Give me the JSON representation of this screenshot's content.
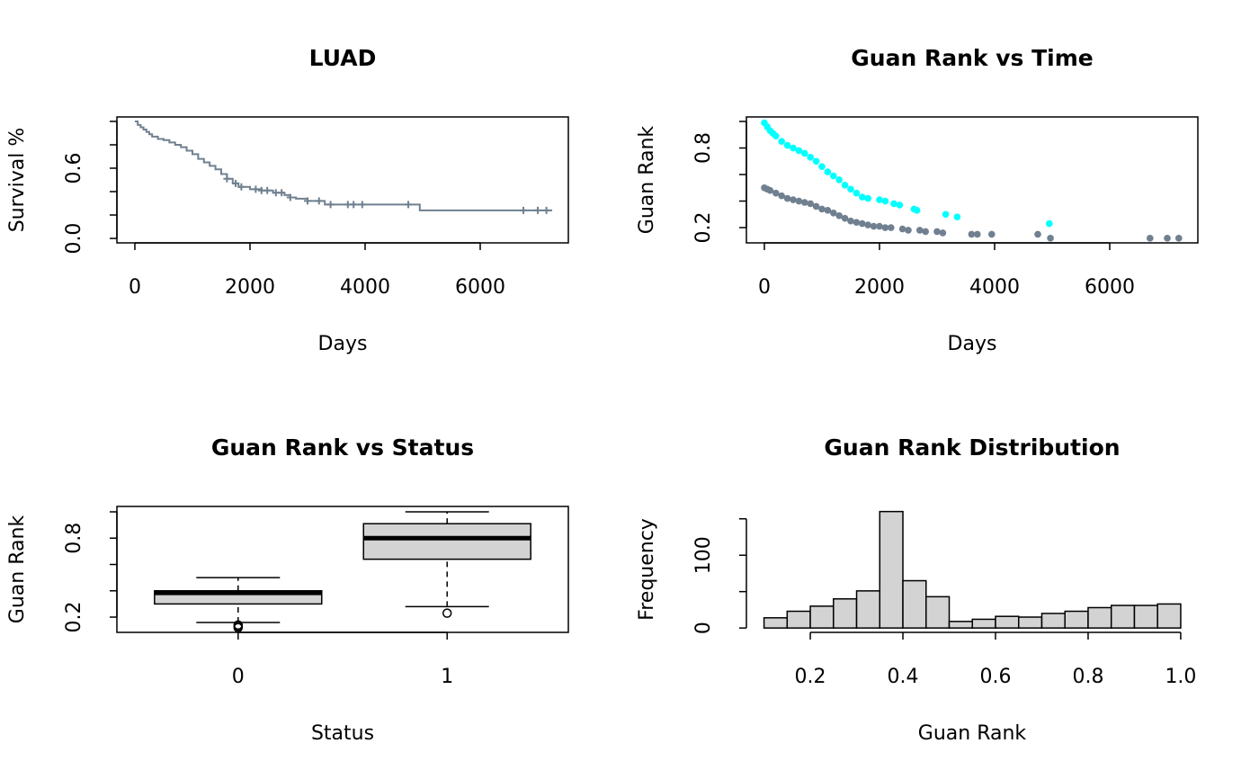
{
  "chart_data": [
    {
      "type": "step",
      "title": "LUAD",
      "xlabel": "Days",
      "ylabel": "Survival %",
      "frame": true,
      "color": "#708090",
      "xlim": [
        -312,
        7531
      ],
      "ylim": [
        -0.038,
        1.038
      ],
      "xticks": [
        0,
        2000,
        4000,
        6000
      ],
      "yticks": [
        {
          "value": 0,
          "label": "0.0"
        },
        {
          "value": 0.2,
          "label": null
        },
        {
          "value": 0.4,
          "label": null
        },
        {
          "value": 0.6,
          "label": "0.6"
        },
        {
          "value": 0.8,
          "label": null
        },
        {
          "value": 1.0,
          "label": null
        }
      ],
      "x": [
        0,
        50,
        100,
        150,
        200,
        250,
        300,
        400,
        500,
        600,
        700,
        800,
        900,
        1000,
        1100,
        1200,
        1300,
        1400,
        1500,
        1600,
        1700,
        1800,
        2000,
        2200,
        2400,
        2600,
        2700,
        2800,
        3000,
        3300,
        4950,
        7250
      ],
      "values": [
        1.0,
        0.97,
        0.95,
        0.93,
        0.91,
        0.89,
        0.87,
        0.85,
        0.84,
        0.82,
        0.8,
        0.78,
        0.75,
        0.72,
        0.68,
        0.65,
        0.62,
        0.59,
        0.55,
        0.51,
        0.47,
        0.44,
        0.42,
        0.41,
        0.39,
        0.37,
        0.35,
        0.34,
        0.32,
        0.29,
        0.24,
        0.24
      ],
      "censor": {
        "x": [
          1600,
          1750,
          1850,
          2100,
          2200,
          2300,
          2450,
          2550,
          2700,
          3000,
          3200,
          3400,
          3700,
          3800,
          3950,
          4750,
          6750,
          7000,
          7150
        ],
        "values": [
          0.51,
          0.47,
          0.44,
          0.42,
          0.41,
          0.41,
          0.39,
          0.39,
          0.35,
          0.32,
          0.32,
          0.29,
          0.29,
          0.29,
          0.29,
          0.29,
          0.24,
          0.24,
          0.24
        ]
      }
    },
    {
      "type": "scatter",
      "title": "Guan Rank vs Time",
      "xlabel": "Days",
      "ylabel": "Guan Rank",
      "frame": true,
      "xlim": [
        -312,
        7531
      ],
      "ylim": [
        0.085,
        1.034
      ],
      "xticks": [
        0,
        2000,
        4000,
        6000
      ],
      "yticks": [
        0.2,
        {
          "value": 0.4,
          "label": null
        },
        {
          "value": 0.6,
          "label": null
        },
        0.8,
        {
          "value": 1.0,
          "label": null
        }
      ],
      "series": [
        {
          "color": "#00ffff",
          "x": [
            0,
            50,
            100,
            150,
            200,
            300,
            400,
            500,
            600,
            700,
            800,
            900,
            1000,
            1100,
            1200,
            1300,
            1400,
            1500,
            1600,
            1700,
            1800,
            2000,
            2100,
            2250,
            2350,
            2600,
            2650,
            3150,
            3350,
            4950
          ],
          "values": [
            0.99,
            0.96,
            0.93,
            0.91,
            0.89,
            0.85,
            0.82,
            0.8,
            0.78,
            0.76,
            0.73,
            0.7,
            0.66,
            0.62,
            0.59,
            0.56,
            0.52,
            0.49,
            0.46,
            0.43,
            0.42,
            0.41,
            0.4,
            0.38,
            0.37,
            0.34,
            0.33,
            0.3,
            0.28,
            0.23
          ]
        },
        {
          "color": "#708090",
          "x": [
            0,
            50,
            100,
            200,
            300,
            400,
            500,
            600,
            700,
            800,
            900,
            1000,
            1100,
            1200,
            1300,
            1400,
            1500,
            1600,
            1700,
            1800,
            1900,
            2000,
            2100,
            2200,
            2400,
            2500,
            2700,
            2800,
            3000,
            3100,
            3600,
            3700,
            3950,
            4750,
            4970,
            6700,
            7000,
            7200
          ],
          "values": [
            0.5,
            0.49,
            0.48,
            0.46,
            0.44,
            0.42,
            0.41,
            0.4,
            0.39,
            0.38,
            0.36,
            0.34,
            0.33,
            0.31,
            0.29,
            0.27,
            0.25,
            0.24,
            0.23,
            0.22,
            0.21,
            0.21,
            0.2,
            0.2,
            0.19,
            0.18,
            0.18,
            0.17,
            0.17,
            0.16,
            0.15,
            0.15,
            0.15,
            0.15,
            0.12,
            0.12,
            0.12,
            0.12
          ]
        }
      ]
    },
    {
      "type": "box",
      "title": "Guan Rank vs Status",
      "xlabel": "Status",
      "ylabel": "Guan Rank",
      "frame": true,
      "color": "#d3d3d3",
      "ylim": [
        0.084,
        1.041
      ],
      "yticks": [
        0.2,
        {
          "value": 0.4,
          "label": null
        },
        {
          "value": 0.6,
          "label": null
        },
        0.8,
        {
          "value": 1.0,
          "label": null
        }
      ],
      "categories": [
        "0",
        "1"
      ],
      "boxes": [
        {
          "whislo": 0.159,
          "q1": 0.3,
          "med": 0.384,
          "q3": 0.4,
          "whishi": 0.5,
          "fliers": [
            0.12,
            0.13,
            0.14
          ]
        },
        {
          "whislo": 0.28,
          "q1": 0.64,
          "med": 0.8,
          "q3": 0.91,
          "whishi": 1.0,
          "fliers": [
            0.23
          ]
        }
      ]
    },
    {
      "type": "histogram",
      "title": "Guan Rank Distribution",
      "xlabel": "Guan Rank",
      "ylabel": "Frequency",
      "frame": false,
      "color": "#d3d3d3",
      "xlim": [
        0.062,
        1.037
      ],
      "ylim": [
        -6,
        167
      ],
      "xticks": [
        0.2,
        0.4,
        0.6,
        0.8,
        {
          "value": 1.0,
          "label": "1.0"
        }
      ],
      "yticks": [
        0,
        {
          "value": 50,
          "label": null
        },
        100,
        {
          "value": 150,
          "label": null
        }
      ],
      "bins": [
        0.1,
        0.15,
        0.2,
        0.25,
        0.3,
        0.35,
        0.4,
        0.45,
        0.5,
        0.55,
        0.6,
        0.65,
        0.7,
        0.75,
        0.8,
        0.85,
        0.9,
        0.95,
        1.0
      ],
      "values": [
        14,
        23,
        30,
        40,
        51,
        160,
        65,
        43,
        9,
        12,
        16,
        15,
        20,
        23,
        28,
        31,
        31,
        33
      ]
    }
  ]
}
